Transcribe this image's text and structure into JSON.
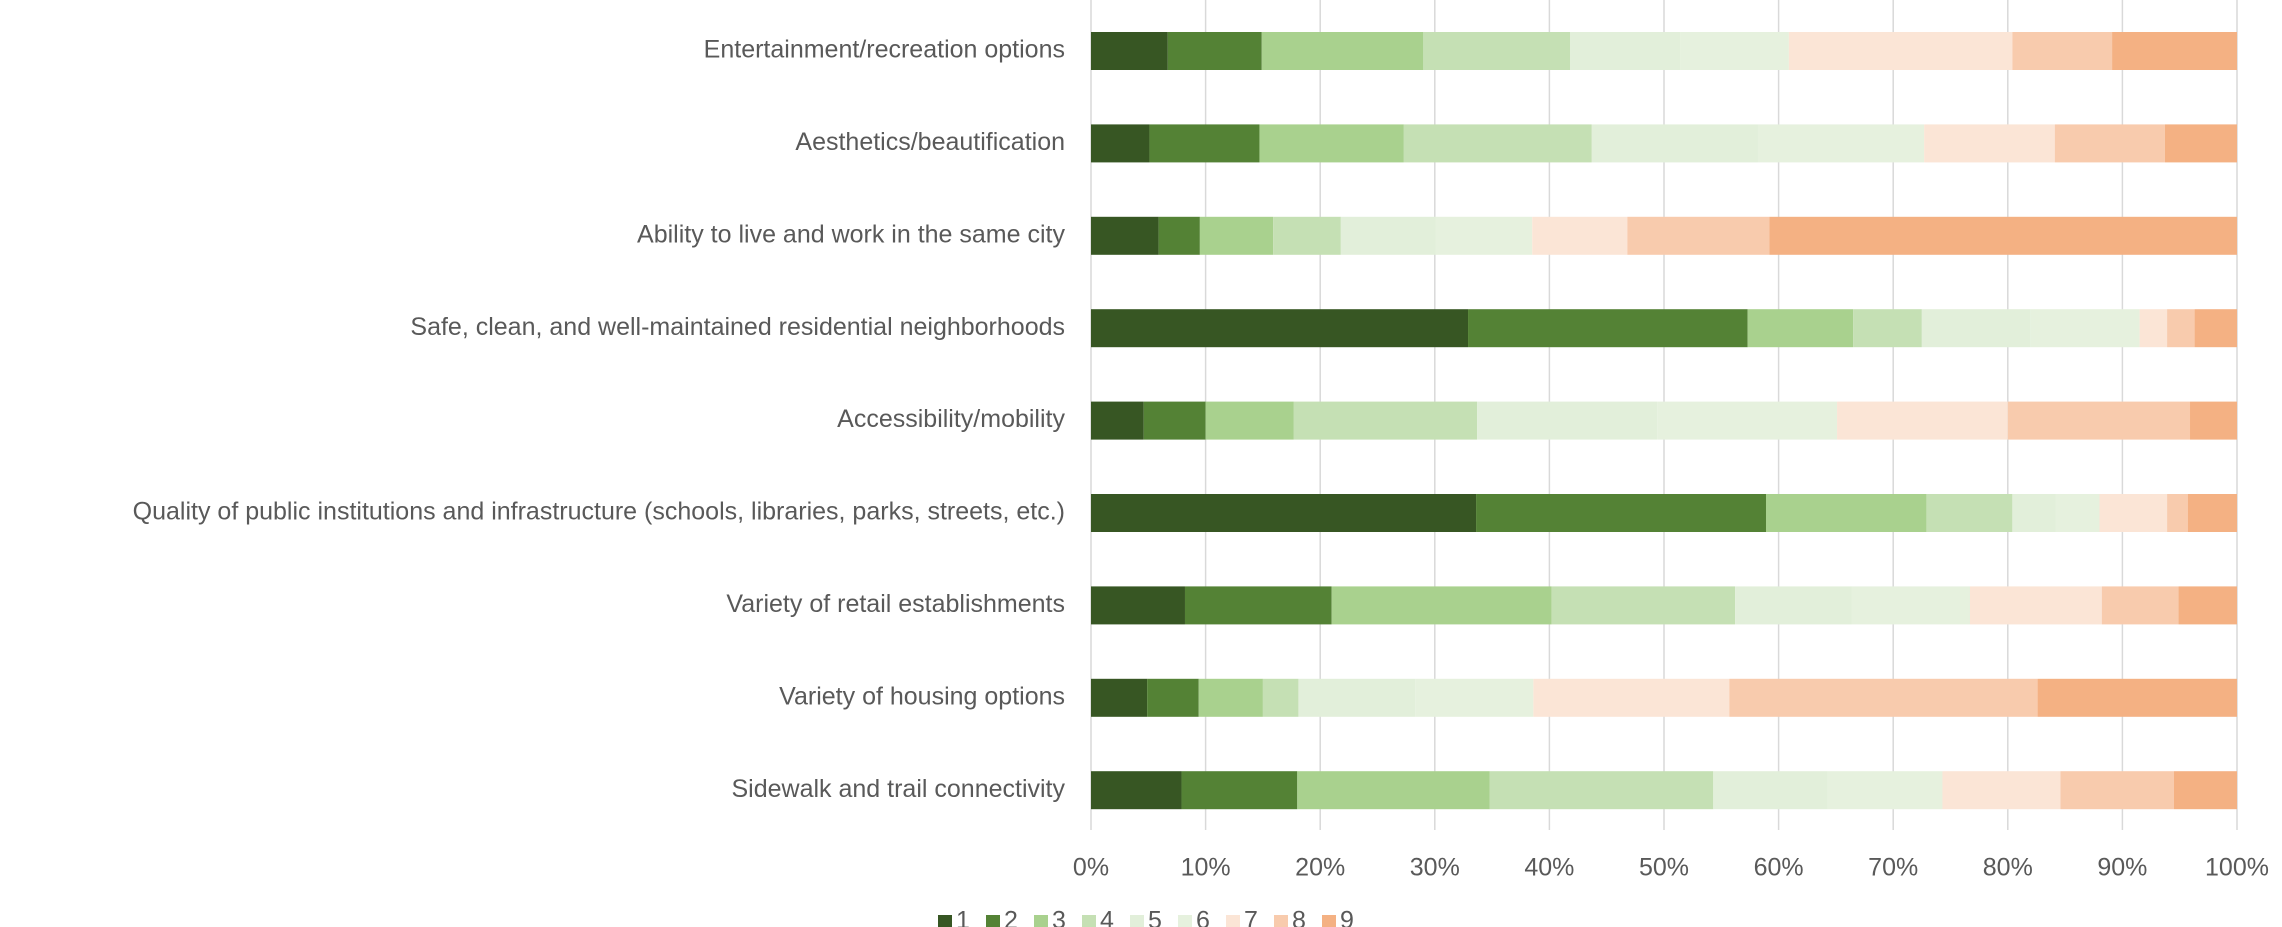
{
  "chart_data": {
    "type": "stacked_bar_horizontal",
    "categories": [
      "Entertainment/recreation options",
      "Aesthetics/beautification",
      "Ability to live and work in the same city",
      "Safe, clean, and well-maintained residential neighborhoods",
      "Accessibility/mobility",
      "Quality of public institutions and infrastructure (schools, libraries, parks, streets, etc.)",
      "Variety of retail establishments",
      "Variety of housing options",
      "Sidewalk and trail connectivity"
    ],
    "series": [
      {
        "name": "1",
        "color": "#375623",
        "values": [
          6.7,
          5.1,
          5.9,
          32.9,
          4.6,
          33.6,
          8.2,
          4.9,
          7.9
        ]
      },
      {
        "name": "2",
        "color": "#548235",
        "values": [
          8.2,
          9.6,
          3.6,
          24.4,
          5.4,
          25.3,
          12.8,
          4.5,
          10.1
        ]
      },
      {
        "name": "3",
        "color": "#a9d18e",
        "values": [
          14.1,
          12.6,
          6.4,
          9.2,
          7.7,
          14.0,
          19.2,
          5.6,
          16.8
        ]
      },
      {
        "name": "4",
        "color": "#c5e0b4",
        "values": [
          12.8,
          16.4,
          5.9,
          6.0,
          16.0,
          7.5,
          16.0,
          3.1,
          19.5
        ]
      },
      {
        "name": "5",
        "color": "#e2efda",
        "values": [
          9.6,
          14.5,
          8.3,
          9.5,
          15.7,
          3.8,
          10.2,
          10.2,
          10.0
        ]
      },
      {
        "name": "6",
        "color": "#e6f1de",
        "values": [
          9.5,
          14.5,
          8.4,
          9.5,
          15.7,
          3.8,
          10.3,
          10.3,
          10.0
        ]
      },
      {
        "name": "7",
        "color": "#fbe5d6",
        "values": [
          19.5,
          11.4,
          8.3,
          2.4,
          14.9,
          5.9,
          11.5,
          17.1,
          10.3
        ]
      },
      {
        "name": "8",
        "color": "#f8cbad",
        "values": [
          8.7,
          9.6,
          12.4,
          2.4,
          15.9,
          1.8,
          6.7,
          26.9,
          9.9
        ]
      },
      {
        "name": "9",
        "color": "#f4b183",
        "values": [
          10.9,
          6.3,
          40.8,
          3.7,
          4.1,
          4.3,
          5.1,
          17.4,
          5.5
        ]
      }
    ],
    "xlim": [
      0,
      100
    ],
    "xticks": [
      {
        "value": 0,
        "label": "0%"
      },
      {
        "value": 10,
        "label": "10%"
      },
      {
        "value": 20,
        "label": "20%"
      },
      {
        "value": 30,
        "label": "30%"
      },
      {
        "value": 40,
        "label": "40%"
      },
      {
        "value": 50,
        "label": "50%"
      },
      {
        "value": 60,
        "label": "60%"
      },
      {
        "value": 70,
        "label": "70%"
      },
      {
        "value": 80,
        "label": "80%"
      },
      {
        "value": 90,
        "label": "90%"
      },
      {
        "value": 100,
        "label": "100%"
      }
    ],
    "grid": true,
    "legend": "bottom"
  }
}
